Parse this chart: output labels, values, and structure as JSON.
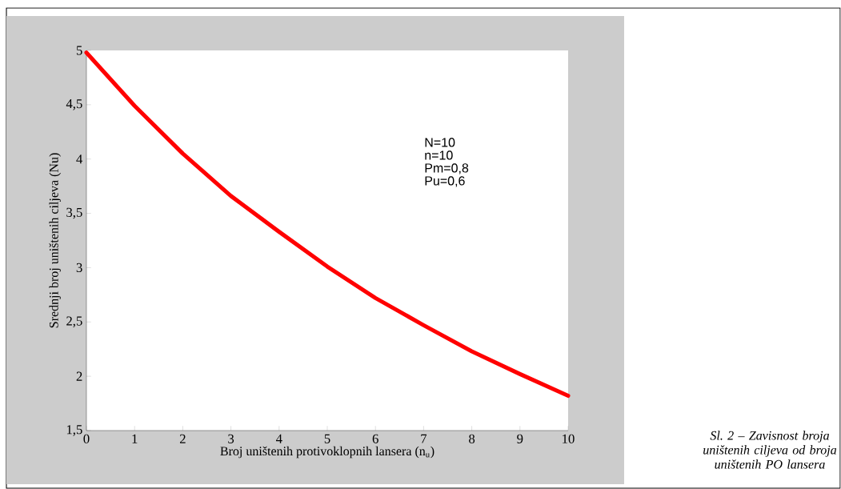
{
  "chart_data": {
    "type": "line",
    "xlabel": "Broj uništenih protivoklopnih lansera (n$_{u}$)",
    "ylabel": "Srednji broj uništenih ciljeva  (Nu)",
    "x": [
      0,
      1,
      2,
      3,
      4,
      5,
      6,
      7,
      8,
      9,
      10
    ],
    "series": [
      {
        "color": "#ff0000",
        "values": [
          4.98,
          4.49,
          4.05,
          3.66,
          3.33,
          3.01,
          2.72,
          2.47,
          2.23,
          2.02,
          1.82
        ]
      }
    ],
    "xlim": [
      0,
      10
    ],
    "xticks": [
      0,
      1,
      2,
      3,
      4,
      5,
      6,
      7,
      8,
      9,
      10
    ],
    "ylim": [
      1.5,
      5
    ],
    "yticks": [
      {
        "value": 1.5,
        "label": "1,5"
      },
      2,
      {
        "value": 2.5,
        "label": "2,5"
      },
      3,
      {
        "value": 3.5,
        "label": "3,5"
      },
      4,
      {
        "value": 4.5,
        "label": "4,5"
      },
      5
    ],
    "grid": false,
    "marker": "none",
    "line_style": "solid",
    "annotations": [
      "N=10",
      "n=10",
      "Pm=0,8",
      "Pu=0,6",
      "Sl. 2 – Zavisnost broja uništenih ciljeva od broja uništenih PO lansera"
    ]
  }
}
